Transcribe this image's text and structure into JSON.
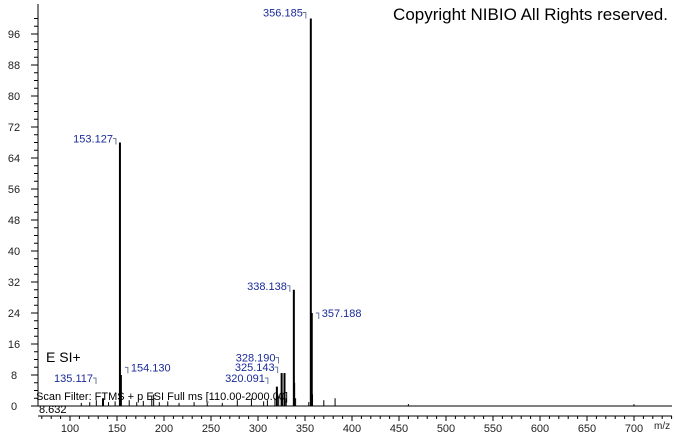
{
  "copyright": "Copyright NIBIO All Rights reserved.",
  "ionization": "E SI+",
  "scan_filter": "Scan Filter: FTMS + p ESI Full ms [110.00-2000.00]",
  "retention_time": "8.632",
  "chart_data": {
    "type": "bar",
    "title": "",
    "xlabel": "m/z",
    "ylabel": "",
    "xlim": [
      66,
      740
    ],
    "ylim": [
      0,
      104
    ],
    "x_ticks": [
      100,
      150,
      200,
      250,
      300,
      350,
      400,
      450,
      500,
      550,
      600,
      650,
      700
    ],
    "y_ticks": [
      0,
      8,
      16,
      24,
      32,
      40,
      48,
      56,
      64,
      72,
      80,
      88,
      96
    ],
    "grid": false,
    "colors": {
      "peaks": "#000000",
      "labels": "#1a2a9a"
    },
    "labeled_peaks": [
      {
        "mz": 356.185,
        "intensity": 100,
        "label": "356.185"
      },
      {
        "mz": 153.127,
        "intensity": 68,
        "label": "153.127"
      },
      {
        "mz": 338.138,
        "intensity": 30,
        "label": "338.138"
      },
      {
        "mz": 357.188,
        "intensity": 24,
        "label": "357.188"
      },
      {
        "mz": 154.13,
        "intensity": 8,
        "label": "154.130"
      },
      {
        "mz": 328.19,
        "intensity": 8.5,
        "label": "328.190"
      },
      {
        "mz": 325.143,
        "intensity": 8.5,
        "label": "325.143"
      },
      {
        "mz": 320.091,
        "intensity": 5,
        "label": "320.091"
      },
      {
        "mz": 135.117,
        "intensity": 2,
        "label": "135.117"
      }
    ],
    "minor_peaks": [
      {
        "mz": 112,
        "intensity": 0.8
      },
      {
        "mz": 121,
        "intensity": 1
      },
      {
        "mz": 128,
        "intensity": 1.5
      },
      {
        "mz": 141,
        "intensity": 1
      },
      {
        "mz": 148,
        "intensity": 1.2
      },
      {
        "mz": 163,
        "intensity": 1.5
      },
      {
        "mz": 171,
        "intensity": 1
      },
      {
        "mz": 178,
        "intensity": 1.3
      },
      {
        "mz": 187,
        "intensity": 2.5
      },
      {
        "mz": 189,
        "intensity": 3
      },
      {
        "mz": 195,
        "intensity": 1
      },
      {
        "mz": 204,
        "intensity": 1.2
      },
      {
        "mz": 216,
        "intensity": 0.8
      },
      {
        "mz": 232,
        "intensity": 1
      },
      {
        "mz": 246,
        "intensity": 0.8
      },
      {
        "mz": 262,
        "intensity": 0.8
      },
      {
        "mz": 278,
        "intensity": 1.5
      },
      {
        "mz": 293,
        "intensity": 2
      },
      {
        "mz": 306,
        "intensity": 1.2
      },
      {
        "mz": 310,
        "intensity": 1.5
      },
      {
        "mz": 318,
        "intensity": 2
      },
      {
        "mz": 322,
        "intensity": 2.5
      },
      {
        "mz": 326,
        "intensity": 3
      },
      {
        "mz": 330,
        "intensity": 2
      },
      {
        "mz": 339,
        "intensity": 6
      },
      {
        "mz": 340,
        "intensity": 2
      },
      {
        "mz": 354,
        "intensity": 1
      },
      {
        "mz": 358,
        "intensity": 3
      },
      {
        "mz": 370,
        "intensity": 1.5
      },
      {
        "mz": 382,
        "intensity": 2
      },
      {
        "mz": 460,
        "intensity": 0.5
      },
      {
        "mz": 700,
        "intensity": 0.5
      }
    ]
  }
}
